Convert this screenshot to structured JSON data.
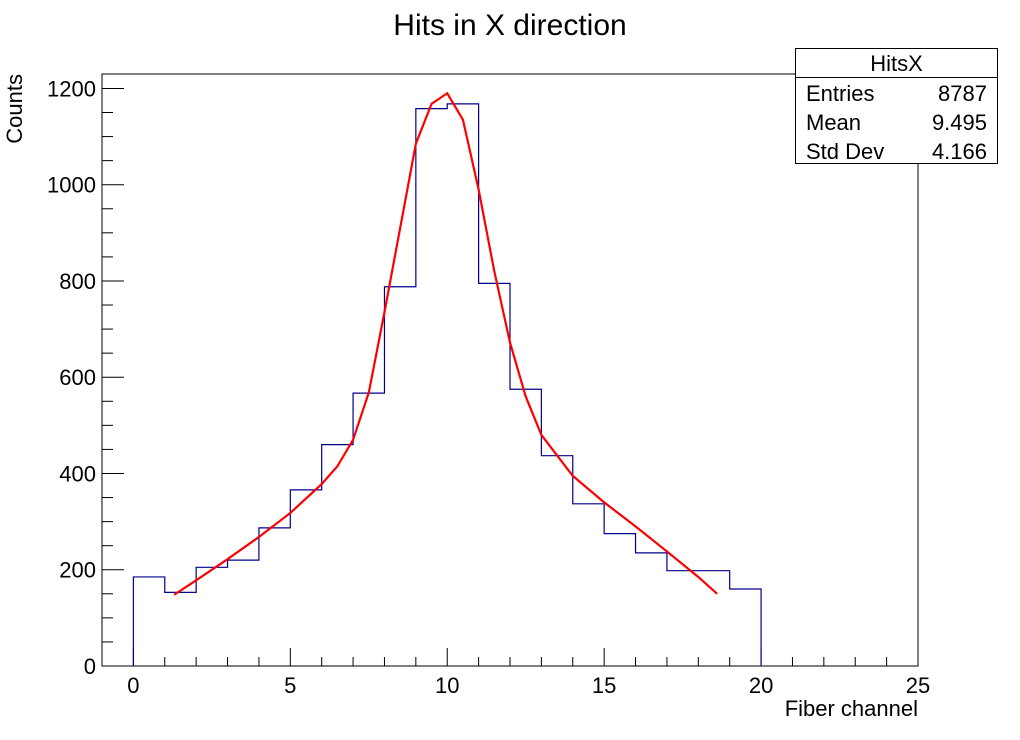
{
  "chart_data": {
    "type": "histogram",
    "title": "Hits in X direction",
    "xlabel": "Fiber channel",
    "ylabel": "Counts",
    "xlim": [
      -1,
      25
    ],
    "ylim": [
      0,
      1230
    ],
    "x_ticks": [
      0,
      5,
      10,
      15,
      20,
      25
    ],
    "y_ticks": [
      0,
      200,
      400,
      600,
      800,
      1000,
      1200
    ],
    "bin_edges": [
      0,
      1,
      2,
      3,
      4,
      5,
      6,
      7,
      8,
      9,
      10,
      11,
      12,
      13,
      14,
      15,
      16,
      17,
      18,
      19,
      20
    ],
    "values": [
      185,
      153,
      205,
      220,
      287,
      366,
      460,
      567,
      788,
      1158,
      1168,
      795,
      575,
      437,
      337,
      275,
      235,
      198,
      198,
      160
    ],
    "histogram_color": "#00008b",
    "fit": {
      "color": "#ff0000",
      "x": [
        1.3,
        2,
        3,
        4,
        5,
        6,
        6.5,
        7,
        7.5,
        8,
        8.5,
        9,
        9.5,
        10,
        10.5,
        11,
        11.5,
        12,
        12.5,
        13,
        14,
        15,
        16,
        17,
        18,
        18.6
      ],
      "y": [
        148,
        178,
        222,
        268,
        318,
        378,
        415,
        470,
        568,
        735,
        910,
        1085,
        1168,
        1190,
        1135,
        990,
        820,
        672,
        560,
        480,
        395,
        340,
        290,
        238,
        185,
        150
      ]
    },
    "stats": {
      "name": "HitsX",
      "rows": [
        {
          "label": "Entries",
          "value": "8787"
        },
        {
          "label": "Mean",
          "value": "9.495"
        },
        {
          "label": "Std Dev",
          "value": "4.166"
        }
      ]
    }
  }
}
